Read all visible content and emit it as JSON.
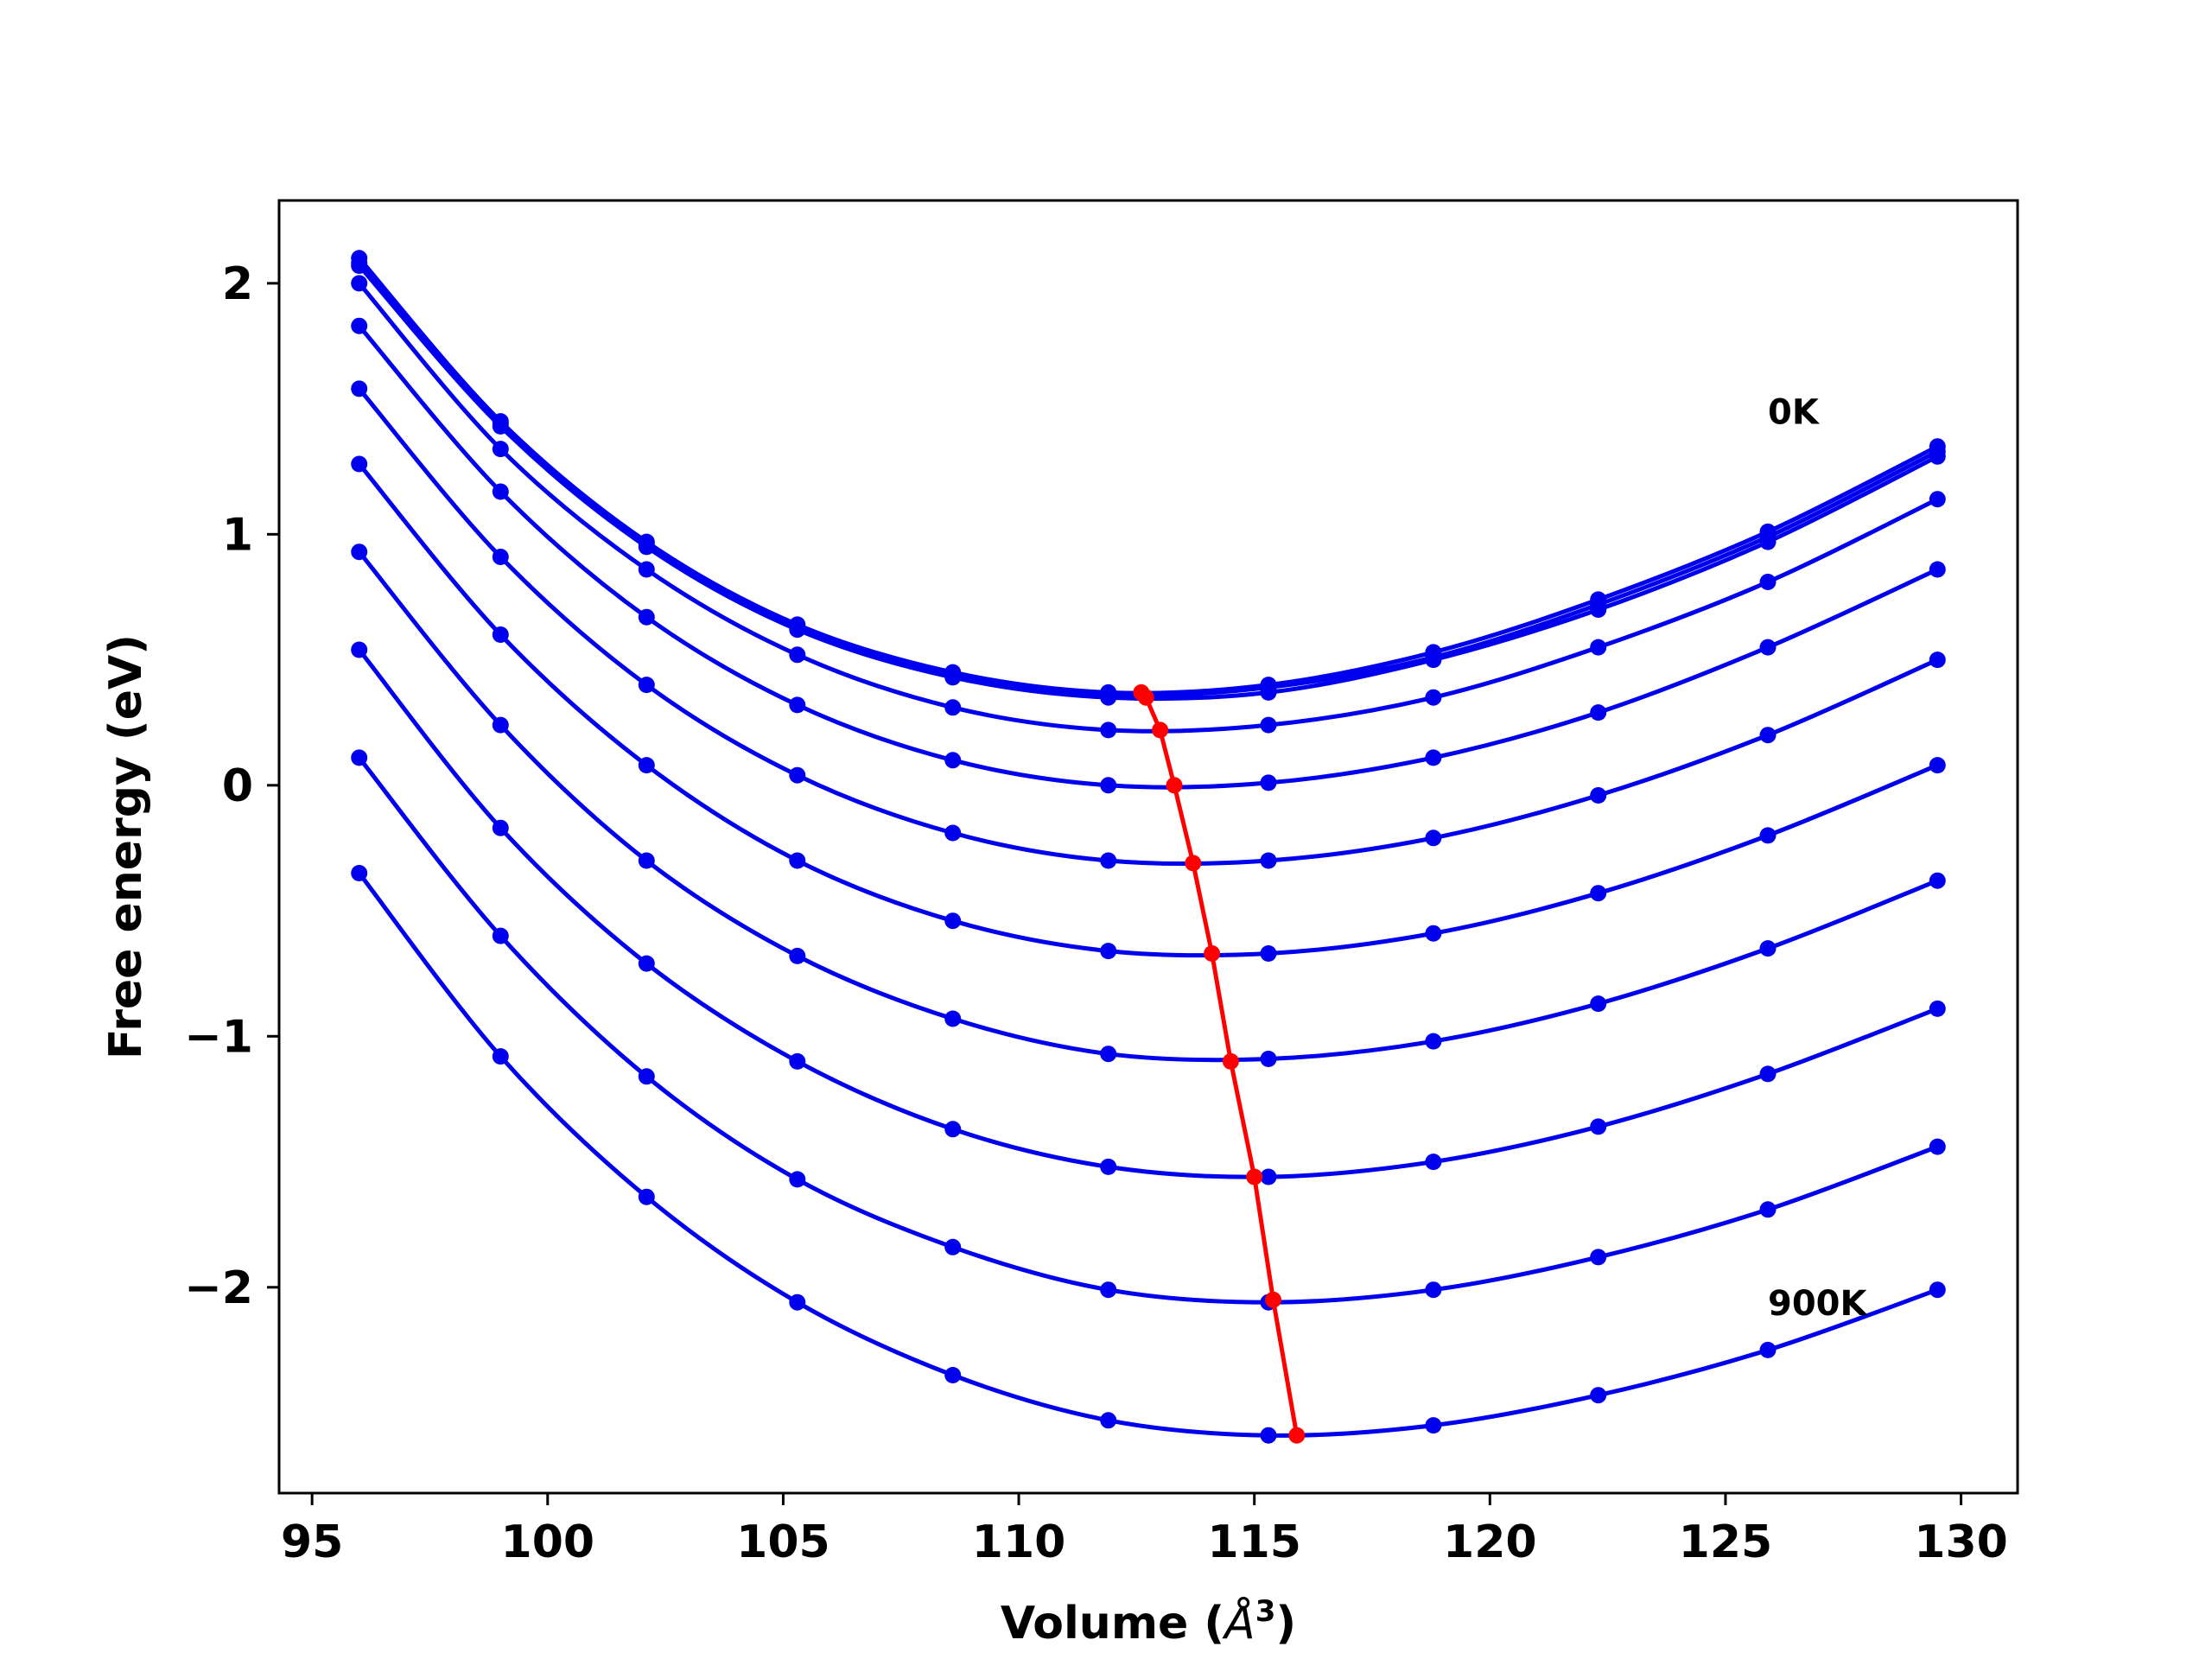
{
  "chart_data": {
    "type": "line",
    "xlabel": "Volume (",
    "xlabel_unit": "Å",
    "xlabel_sup": "3",
    "xlabel_close": ")",
    "ylabel": "Free energy (eV)",
    "xlim": [
      94.3,
      131.2
    ],
    "ylim": [
      -2.82,
      2.33
    ],
    "x_ticks": [
      95,
      100,
      105,
      110,
      115,
      120,
      125,
      130
    ],
    "x_tick_labels": [
      "95",
      "100",
      "105",
      "110",
      "115",
      "120",
      "125",
      "130"
    ],
    "y_ticks": [
      2,
      1,
      0,
      -1,
      -2
    ],
    "y_tick_labels": [
      "2",
      "1",
      "0",
      "−1",
      "−2"
    ],
    "grid": false,
    "legend": "none",
    "x": [
      96.0,
      99.0,
      102.1,
      105.3,
      108.6,
      111.9,
      115.3,
      118.8,
      122.3,
      125.9,
      129.5
    ],
    "series": [
      {
        "color": "#0000ee",
        "values": [
          2.1,
          1.45,
          0.97,
          0.64,
          0.45,
          0.37,
          0.4,
          0.53,
          0.74,
          1.01,
          1.35
        ]
      },
      {
        "color": "#0000ee",
        "values": [
          2.08,
          1.44,
          0.96,
          0.63,
          0.44,
          0.36,
          0.39,
          0.51,
          0.72,
          0.99,
          1.33
        ]
      },
      {
        "color": "#0000ee",
        "values": [
          2.07,
          1.43,
          0.95,
          0.62,
          0.43,
          0.35,
          0.37,
          0.5,
          0.7,
          0.97,
          1.31
        ]
      },
      {
        "color": "#0000ee",
        "values": [
          2.0,
          1.34,
          0.86,
          0.52,
          0.31,
          0.22,
          0.24,
          0.35,
          0.55,
          0.81,
          1.14
        ]
      },
      {
        "color": "#0000ee",
        "values": [
          1.83,
          1.17,
          0.67,
          0.32,
          0.1,
          0.0,
          0.01,
          0.11,
          0.29,
          0.55,
          0.86
        ]
      },
      {
        "color": "#0000ee",
        "values": [
          1.58,
          0.91,
          0.4,
          0.04,
          -0.19,
          -0.3,
          -0.3,
          -0.21,
          -0.04,
          0.2,
          0.5
        ]
      },
      {
        "color": "#0000ee",
        "values": [
          1.28,
          0.6,
          0.08,
          -0.3,
          -0.54,
          -0.66,
          -0.67,
          -0.59,
          -0.43,
          -0.2,
          0.08
        ]
      },
      {
        "color": "#0000ee",
        "values": [
          0.93,
          0.24,
          -0.3,
          -0.68,
          -0.93,
          -1.07,
          -1.09,
          -1.02,
          -0.87,
          -0.65,
          -0.38
        ]
      },
      {
        "color": "#0000ee",
        "values": [
          0.54,
          -0.17,
          -0.71,
          -1.1,
          -1.37,
          -1.52,
          -1.56,
          -1.5,
          -1.36,
          -1.15,
          -0.89
        ]
      },
      {
        "color": "#0000ee",
        "values": [
          0.11,
          -0.6,
          -1.16,
          -1.57,
          -1.84,
          -2.01,
          -2.06,
          -2.01,
          -1.88,
          -1.69,
          -1.44
        ]
      },
      {
        "color": "#0000ee",
        "values": [
          -0.35,
          -1.08,
          -1.64,
          -2.06,
          -2.35,
          -2.53,
          -2.59,
          -2.55,
          -2.43,
          -2.25,
          -2.01
        ]
      }
    ],
    "minima": {
      "color": "#ff0000",
      "x": [
        112.6,
        112.7,
        113.0,
        113.3,
        113.7,
        114.1,
        114.5,
        115.0,
        115.4,
        115.9
      ],
      "y": [
        0.37,
        0.35,
        0.22,
        0.0,
        -0.31,
        -0.67,
        -1.1,
        -1.56,
        -2.05,
        -2.59
      ]
    },
    "annotations": [
      {
        "text": "0K",
        "x": 125.9,
        "y": 1.44
      },
      {
        "text": "900K",
        "x": 125.9,
        "y": -2.11
      }
    ]
  }
}
